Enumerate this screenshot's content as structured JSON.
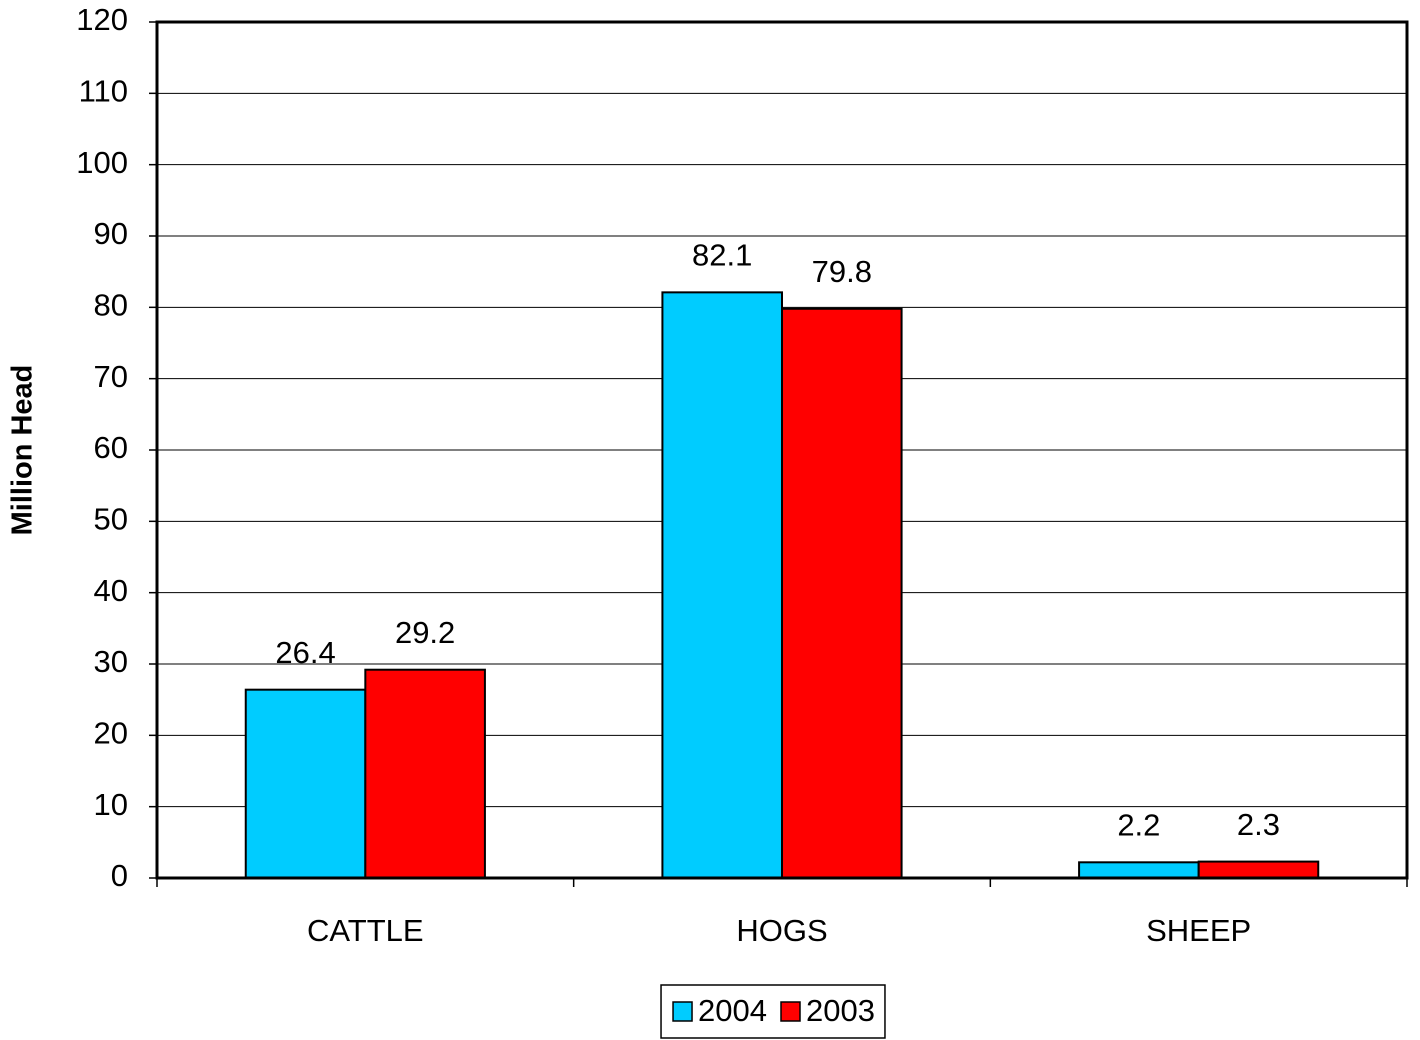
{
  "chart_data": {
    "type": "bar",
    "y_label": "Million Head",
    "categories": [
      "CATTLE",
      "HOGS",
      "SHEEP"
    ],
    "series": [
      {
        "name": "2004",
        "color": "#00ccff",
        "values": [
          26.4,
          82.1,
          2.2
        ]
      },
      {
        "name": "2003",
        "color": "#ff0000",
        "values": [
          29.2,
          79.8,
          2.3
        ]
      }
    ],
    "ylim": [
      0,
      120
    ],
    "yticks": [
      0,
      10,
      20,
      30,
      40,
      50,
      60,
      70,
      80,
      90,
      100,
      110,
      120
    ],
    "grid": true,
    "legend": "bottom"
  }
}
